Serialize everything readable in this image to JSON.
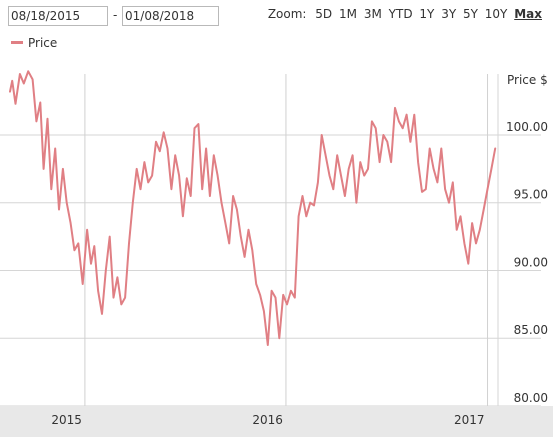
{
  "controls": {
    "date_from": "08/18/2015",
    "date_separator": "-",
    "date_to": "01/08/2018",
    "zoom_label": "Zoom:",
    "zoom_options": [
      "5D",
      "1M",
      "3M",
      "YTD",
      "1Y",
      "3Y",
      "5Y",
      "10Y",
      "Max"
    ],
    "zoom_selected": "Max"
  },
  "chart_data": {
    "type": "line",
    "series": [
      {
        "name": "Price",
        "color": "#e07f84",
        "x": [
          "2014-08-18",
          "2014-08-22",
          "2014-08-28",
          "2014-09-05",
          "2014-09-12",
          "2014-09-20",
          "2014-09-28",
          "2014-10-05",
          "2014-10-12",
          "2014-10-18",
          "2014-10-25",
          "2014-11-01",
          "2014-11-08",
          "2014-11-15",
          "2014-11-22",
          "2014-11-29",
          "2014-12-06",
          "2014-12-13",
          "2014-12-20",
          "2014-12-28",
          "2015-01-05",
          "2015-01-12",
          "2015-01-18",
          "2015-01-25",
          "2015-02-01",
          "2015-02-08",
          "2015-02-15",
          "2015-02-22",
          "2015-03-01",
          "2015-03-08",
          "2015-03-15",
          "2015-03-22",
          "2015-03-29",
          "2015-04-05",
          "2015-04-12",
          "2015-04-19",
          "2015-04-26",
          "2015-05-03",
          "2015-05-10",
          "2015-05-17",
          "2015-05-24",
          "2015-05-31",
          "2015-06-07",
          "2015-06-14",
          "2015-06-21",
          "2015-06-28",
          "2015-07-05",
          "2015-07-12",
          "2015-07-19",
          "2015-07-26",
          "2015-08-02",
          "2015-08-09",
          "2015-08-16",
          "2015-08-23",
          "2015-08-30",
          "2015-09-06",
          "2015-09-13",
          "2015-09-20",
          "2015-09-27",
          "2015-10-04",
          "2015-10-11",
          "2015-10-18",
          "2015-10-25",
          "2015-11-01",
          "2015-11-08",
          "2015-11-15",
          "2015-11-22",
          "2015-11-29",
          "2015-12-06",
          "2015-12-13",
          "2015-12-20",
          "2015-12-27",
          "2016-01-03",
          "2016-01-10",
          "2016-01-17",
          "2016-01-24",
          "2016-01-31",
          "2016-02-07",
          "2016-02-14",
          "2016-02-21",
          "2016-02-28",
          "2016-03-06",
          "2016-03-13",
          "2016-03-20",
          "2016-03-27",
          "2016-04-03",
          "2016-04-10",
          "2016-04-17",
          "2016-04-24",
          "2016-05-01",
          "2016-05-08",
          "2016-05-15",
          "2016-05-22",
          "2016-05-29",
          "2016-06-05",
          "2016-06-12",
          "2016-06-19",
          "2016-06-26",
          "2016-07-03",
          "2016-07-10",
          "2016-07-17",
          "2016-07-24",
          "2016-07-31",
          "2016-08-07",
          "2016-08-14",
          "2016-08-21",
          "2016-08-28",
          "2016-09-04",
          "2016-09-11",
          "2016-09-18",
          "2016-09-25",
          "2016-10-02",
          "2016-10-09",
          "2016-10-16",
          "2016-10-23",
          "2016-10-30",
          "2016-11-06",
          "2016-11-13",
          "2016-11-20",
          "2016-11-27",
          "2016-12-04",
          "2016-12-11",
          "2016-12-18",
          "2016-12-25",
          "2017-01-01",
          "2017-01-08",
          "2017-01-15"
        ],
        "values": [
          103.2,
          104.0,
          102.3,
          104.5,
          103.8,
          104.7,
          104.1,
          101.0,
          102.4,
          97.5,
          101.2,
          96.0,
          99.0,
          94.5,
          97.5,
          95.0,
          93.5,
          91.5,
          92.0,
          89.0,
          93.0,
          90.5,
          91.8,
          88.5,
          86.8,
          90.0,
          92.5,
          88.0,
          89.5,
          87.5,
          88.0,
          92.0,
          95.0,
          97.5,
          96.0,
          98.0,
          96.5,
          97.0,
          99.5,
          98.8,
          100.2,
          99.0,
          96.0,
          98.5,
          97.0,
          94.0,
          96.8,
          95.5,
          100.5,
          100.8,
          96.0,
          99.0,
          95.5,
          98.5,
          97.0,
          95.0,
          93.5,
          92.0,
          95.5,
          94.5,
          92.5,
          91.0,
          93.0,
          91.5,
          89.0,
          88.2,
          87.0,
          84.5,
          88.5,
          88.0,
          85.0,
          88.2,
          87.5,
          88.5,
          88.0,
          94.0,
          95.5,
          94.0,
          95.0,
          94.8,
          96.5,
          100.0,
          98.5,
          97.0,
          96.0,
          98.5,
          97.0,
          95.5,
          97.5,
          98.5,
          95.0,
          98.0,
          97.0,
          97.5,
          101.0,
          100.5,
          98.0,
          100.0,
          99.5,
          98.0,
          102.0,
          101.0,
          100.5,
          101.5,
          99.5,
          101.5,
          98.0,
          95.8,
          96.0,
          99.0,
          97.5,
          96.5,
          99.0,
          96.0,
          95.0,
          96.5,
          93.0,
          94.0,
          92.0,
          90.5,
          93.5,
          92.0,
          93.0,
          94.5,
          96.0,
          97.5,
          99.0
        ]
      }
    ],
    "y_axis": {
      "title": "Price $",
      "ticks": [
        80,
        85,
        90,
        95,
        100
      ],
      "tick_labels": [
        "80.00",
        "85.00",
        "90.00",
        "95.00",
        "100.00"
      ],
      "range": [
        80,
        104.5
      ],
      "position": "right"
    },
    "x_axis": {
      "tick_labels": [
        "2015",
        "2016",
        "2017"
      ],
      "tick_dates": [
        "2015-01-01",
        "2016-01-01",
        "2017-01-01"
      ],
      "range": [
        "2014-08-18",
        "2017-01-20"
      ]
    },
    "grid": true,
    "legend": "top-left"
  }
}
